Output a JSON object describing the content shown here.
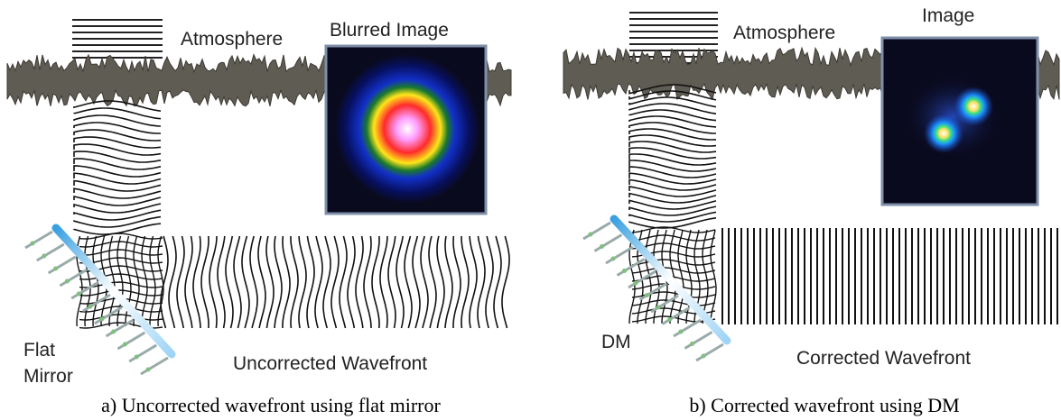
{
  "panels": [
    {
      "atmosphere_label": "Atmosphere",
      "image_label": "Blurred Image",
      "mirror_label_line1": "Flat",
      "mirror_label_line2": "Mirror",
      "wavefront_label": "Uncorrected Wavefront",
      "caption": "a) Uncorrected wavefront using flat mirror",
      "image_type": "blurred-spot"
    },
    {
      "atmosphere_label": "Atmosphere",
      "image_label": "Image",
      "mirror_label_line1": "DM",
      "wavefront_label": "Corrected Wavefront",
      "caption": "b) Corrected wavefront using DM",
      "image_type": "two-sharp-spots"
    }
  ],
  "colors": {
    "image_background": "#0a0a1e",
    "image_frame": "#7f8fa8",
    "mirror_highlight": "#3aa0e0",
    "actuator": "#7fbf7f"
  }
}
